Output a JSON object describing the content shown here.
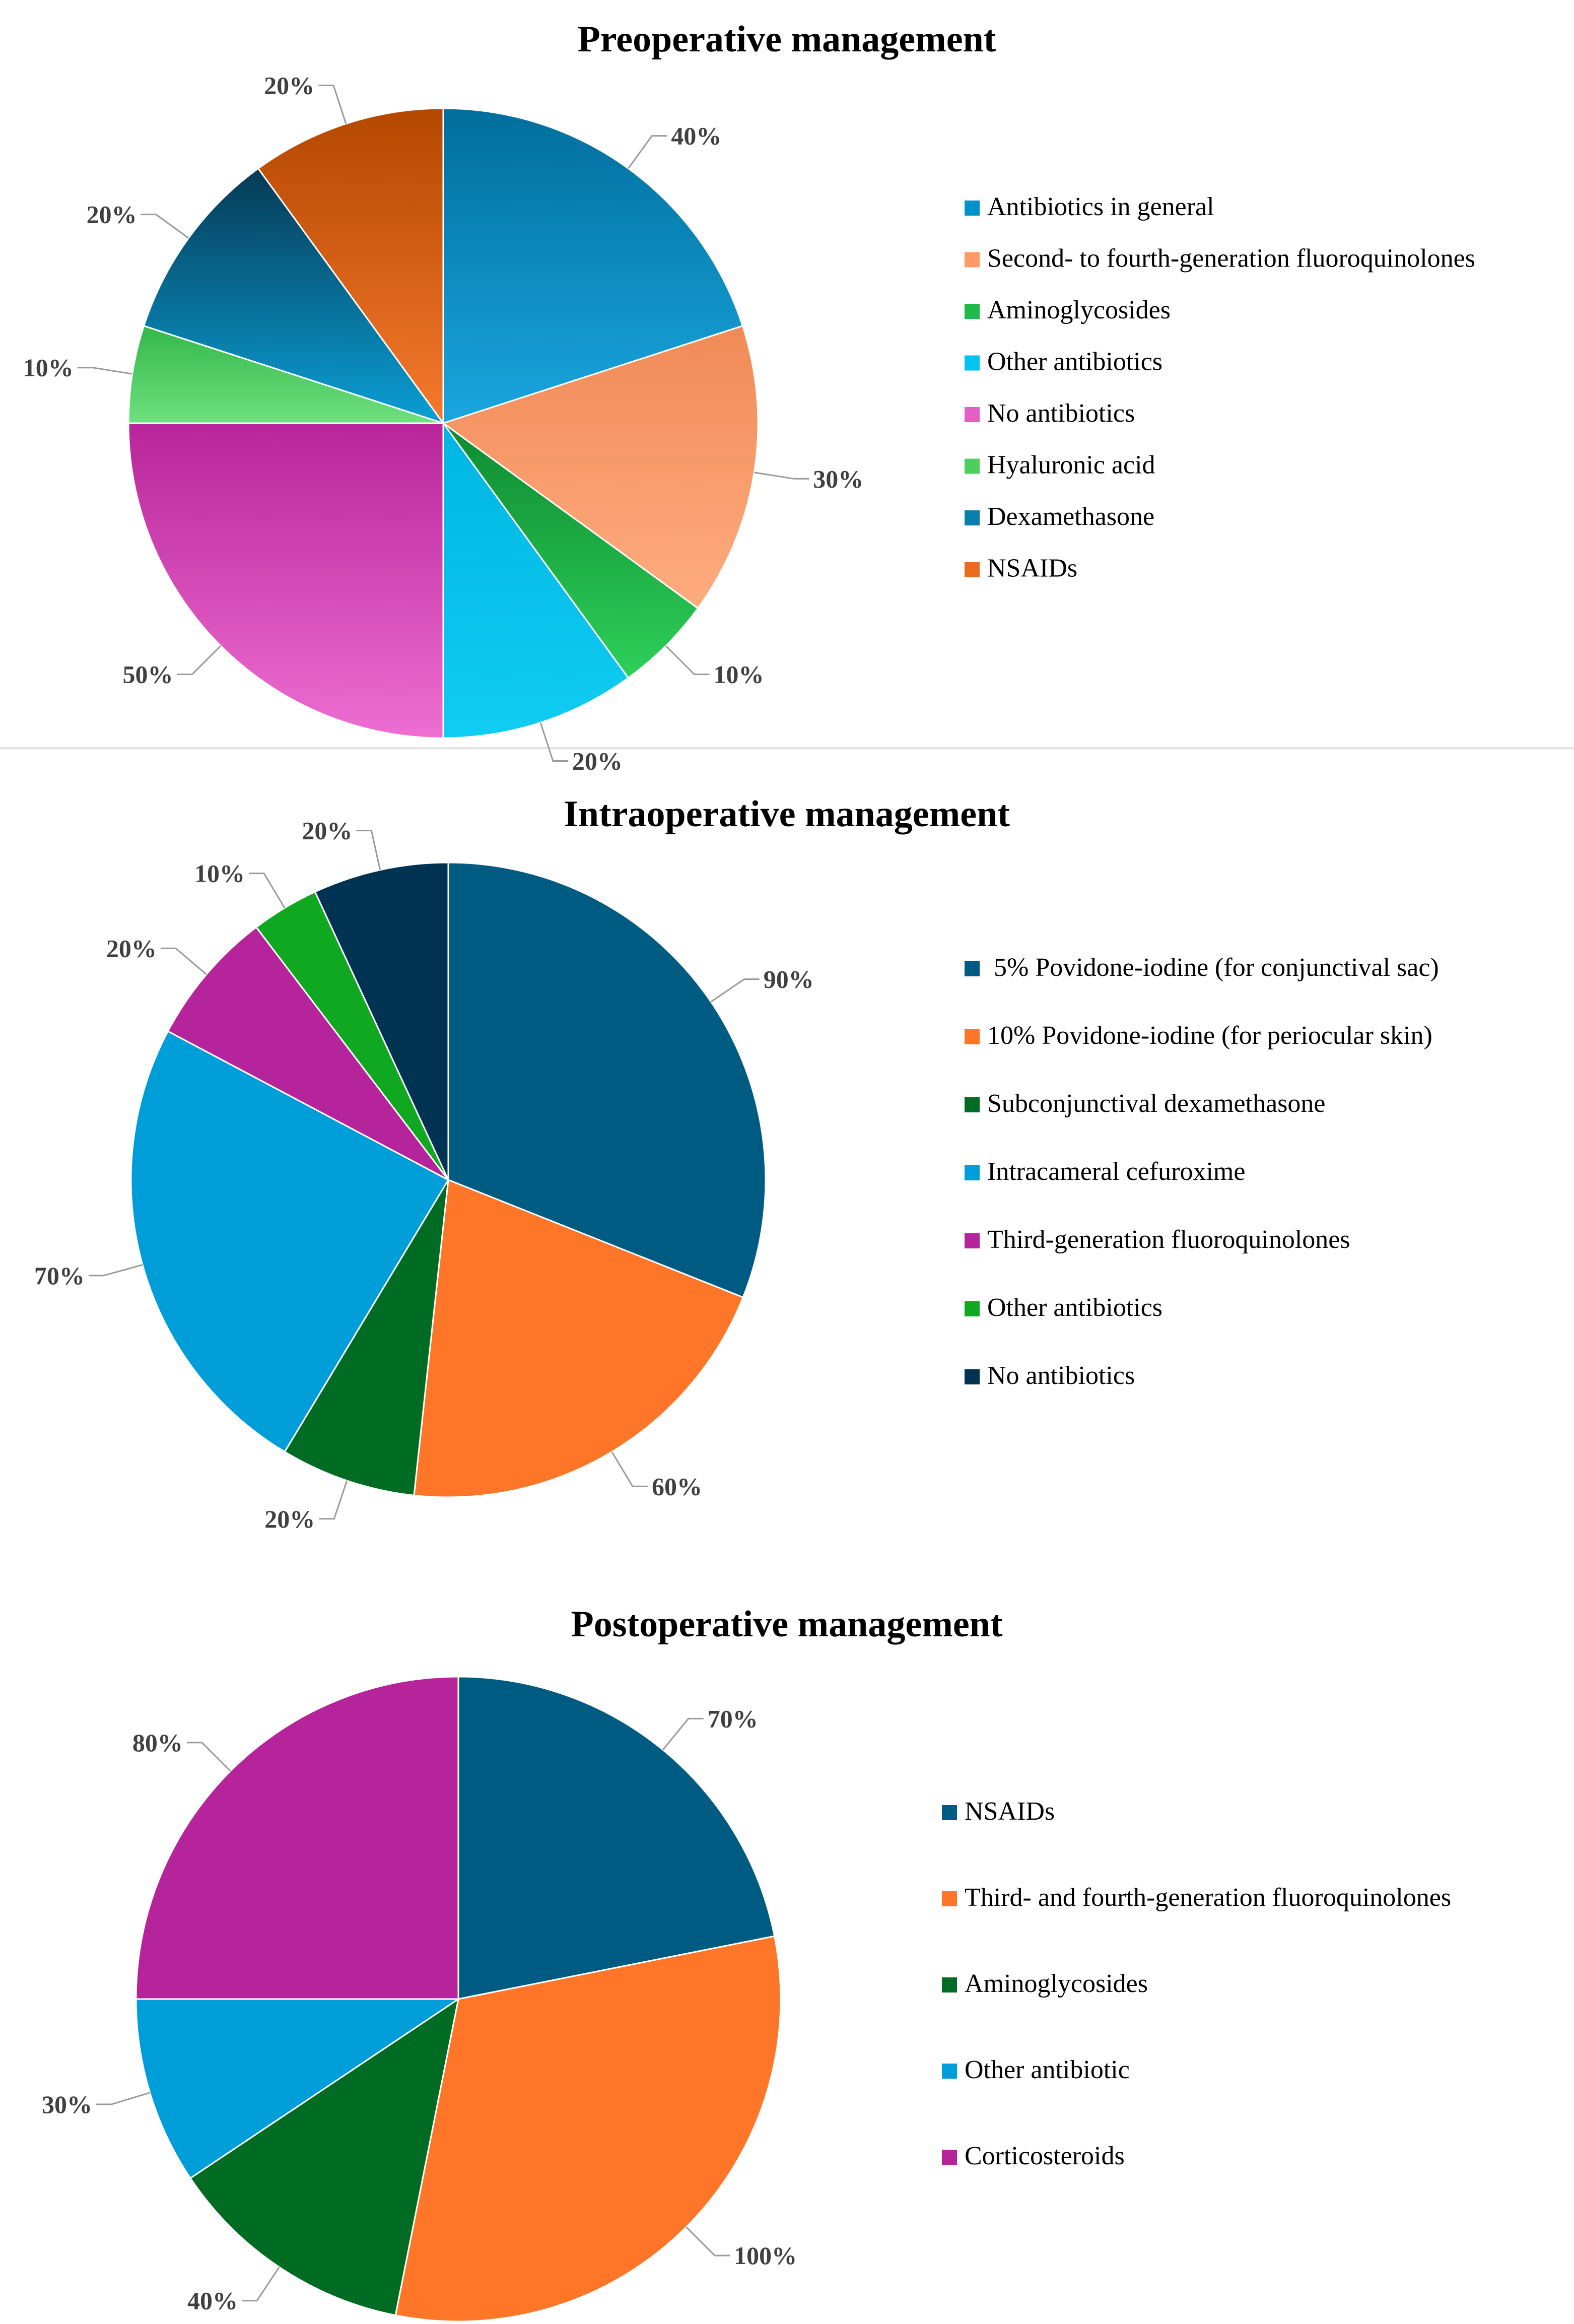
{
  "colors": {
    "background": "#ffffff",
    "title": "#000000",
    "label": "#404040",
    "leader_line": "#9a9a9a",
    "divider": "#d9d9d9"
  },
  "chart_data": [
    {
      "type": "pie",
      "title": "Preoperative management",
      "unit": "%",
      "labels_in_order": "clockwise from top",
      "legend_position": "right",
      "slices": [
        {
          "name": "Antibiotics in general",
          "value": 40,
          "label": "40%",
          "color": "#0092c9",
          "color_light": "#1aa6df",
          "color_dark": "#006e9c",
          "gradient": true
        },
        {
          "name": "Second- to fourth-generation fluoroquinolones",
          "value": 30,
          "label": "30%",
          "color": "#ff9a66",
          "color_light": "#ffac7f",
          "color_dark": "#f08a57",
          "gradient": true
        },
        {
          "name": "Aminoglycosides",
          "value": 10,
          "label": "10%",
          "color": "#1fb84a",
          "color_light": "#2dd05a",
          "color_dark": "#0f8a30",
          "gradient": true
        },
        {
          "name": "Other antibiotics",
          "value": 20,
          "label": "20%",
          "color": "#00c4ef",
          "color_light": "#10ccf2",
          "color_dark": "#00b5e2",
          "gradient": true
        },
        {
          "name": "No antibiotics",
          "value": 50,
          "label": "50%",
          "color": "#e25fc4",
          "color_light": "#ee6ed2",
          "color_dark": "#b8259a",
          "gradient": true
        },
        {
          "name": "Hyaluronic acid",
          "value": 10,
          "label": "10%",
          "color": "#4ccf5e",
          "color_light": "#6fe07f",
          "color_dark": "#33b84a",
          "gradient": true
        },
        {
          "name": "Dexamethasone",
          "value": 20,
          "label": "20%",
          "color": "#0a7eab",
          "color_light": "#0a9fd5",
          "color_dark": "#063a55",
          "gradient": true
        },
        {
          "name": "NSAIDs",
          "value": 20,
          "label": "20%",
          "color": "#e86b20",
          "color_light": "#f47a2d",
          "color_dark": "#b44700",
          "gradient": true
        }
      ]
    },
    {
      "type": "pie",
      "title": "Intraoperative management",
      "unit": "%",
      "labels_in_order": "clockwise from top",
      "legend_position": "right",
      "slices": [
        {
          "name": " 5% Povidone-iodine (for conjunctival sac)",
          "value": 90,
          "label": "90%",
          "color": "#005b82"
        },
        {
          "name": "10% Povidone-iodine (for periocular skin)",
          "value": 60,
          "label": "60%",
          "color": "#ff7628"
        },
        {
          "name": "Subconjunctival dexamethasone",
          "value": 20,
          "label": "20%",
          "color": "#006b22"
        },
        {
          "name": "Intracameral cefuroxime",
          "value": 70,
          "label": "70%",
          "color": "#009ed8"
        },
        {
          "name": "Third-generation fluoroquinolones",
          "value": 20,
          "label": "20%",
          "color": "#b5249a"
        },
        {
          "name": "Other antibiotics",
          "value": 10,
          "label": "10%",
          "color": "#10a820"
        },
        {
          "name": "No antibiotics",
          "value": 20,
          "label": "20%",
          "color": "#003352"
        }
      ]
    },
    {
      "type": "pie",
      "title": "Postoperative management",
      "unit": "%",
      "labels_in_order": "clockwise from top",
      "legend_position": "right",
      "slices": [
        {
          "name": "NSAIDs",
          "value": 70,
          "label": "70%",
          "color": "#005b82"
        },
        {
          "name": "Third- and fourth-generation fluoroquinolones",
          "value": 100,
          "label": "100%",
          "color": "#ff7628"
        },
        {
          "name": "Aminoglycosides",
          "value": 40,
          "label": "40%",
          "color": "#006b22"
        },
        {
          "name": "Other antibiotic",
          "value": 30,
          "label": "30%",
          "color": "#009ed8"
        },
        {
          "name": "Corticosteroids",
          "value": 80,
          "label": "80%",
          "color": "#b5249a"
        }
      ]
    }
  ]
}
